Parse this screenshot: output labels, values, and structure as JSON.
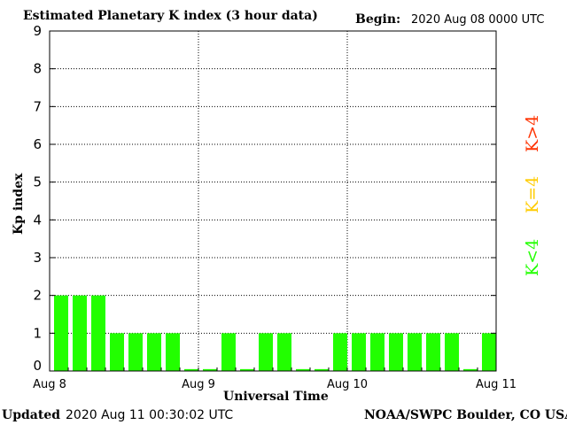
{
  "header": {
    "title": "Estimated Planetary K index (3 hour data)",
    "begin_label": "Begin:",
    "begin_value": "2020 Aug 08 0000 UTC"
  },
  "footer": {
    "updated_label": "Updated",
    "updated_value": "2020 Aug 11 00:30:02 UTC",
    "source": "NOAA/SWPC Boulder, CO USA"
  },
  "legend": {
    "high": "K>4",
    "mid": "K=4",
    "low": "K<4"
  },
  "colors": {
    "low": "#22ff00",
    "mid": "#ffcc00",
    "high": "#ff3300",
    "axis": "#000000"
  },
  "chart_data": {
    "type": "bar",
    "xlabel": "Universal Time",
    "ylabel": "Kp index",
    "ylim": [
      0,
      9
    ],
    "y_ticks": [
      "0",
      "1",
      "2",
      "3",
      "4",
      "5",
      "6",
      "7",
      "8",
      "9"
    ],
    "x_ticks": [
      "Aug 8",
      "Aug 9",
      "Aug 10",
      "Aug 11"
    ],
    "grid": true,
    "interval_hours": 3,
    "values": [
      2,
      2,
      2,
      1,
      1,
      1,
      1,
      0.05,
      0.05,
      1,
      0.05,
      1,
      1,
      0.05,
      0.05,
      1,
      1,
      1,
      1,
      1,
      1,
      1,
      0.05,
      1
    ]
  }
}
